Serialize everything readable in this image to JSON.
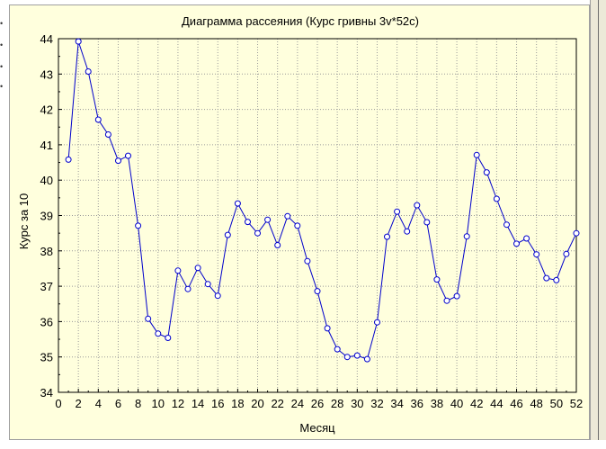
{
  "chart_data": {
    "type": "line",
    "title": "Диаграмма рассеяния (Курс гривны 3v*52c)",
    "xlabel": "Месяц",
    "ylabel": "Курс за 10",
    "xlim": [
      0,
      52
    ],
    "ylim": [
      34,
      44
    ],
    "x_ticks": [
      0,
      2,
      4,
      6,
      8,
      10,
      12,
      14,
      16,
      18,
      20,
      22,
      24,
      26,
      28,
      30,
      32,
      34,
      36,
      38,
      40,
      42,
      44,
      46,
      48,
      50,
      52
    ],
    "y_ticks": [
      34,
      35,
      36,
      37,
      38,
      39,
      40,
      41,
      42,
      43,
      44
    ],
    "grid": true,
    "line_color": "#0000cc",
    "marker": "open-circle",
    "panel_color": "#ffffdd",
    "x": [
      1,
      2,
      3,
      4,
      5,
      6,
      7,
      8,
      9,
      10,
      11,
      12,
      13,
      14,
      15,
      16,
      17,
      18,
      19,
      20,
      21,
      22,
      23,
      24,
      25,
      26,
      27,
      28,
      29,
      30,
      31,
      32,
      33,
      34,
      35,
      36,
      37,
      38,
      39,
      40,
      41,
      42,
      43,
      44,
      45,
      46,
      47,
      48,
      49,
      50,
      51,
      52
    ],
    "y": [
      40.58,
      43.92,
      43.07,
      41.71,
      41.29,
      40.55,
      40.69,
      38.71,
      36.08,
      35.66,
      35.54,
      37.44,
      36.92,
      37.52,
      37.06,
      36.73,
      38.45,
      39.34,
      38.82,
      38.5,
      38.88,
      38.16,
      38.98,
      38.71,
      37.71,
      36.86,
      35.81,
      35.22,
      35.0,
      35.04,
      34.94,
      35.98,
      38.4,
      39.11,
      38.55,
      39.29,
      38.81,
      37.19,
      36.59,
      36.72,
      38.41,
      40.71,
      40.22,
      39.47,
      38.74,
      38.2,
      38.35,
      37.9,
      37.23,
      37.17,
      37.91,
      38.5
    ]
  }
}
